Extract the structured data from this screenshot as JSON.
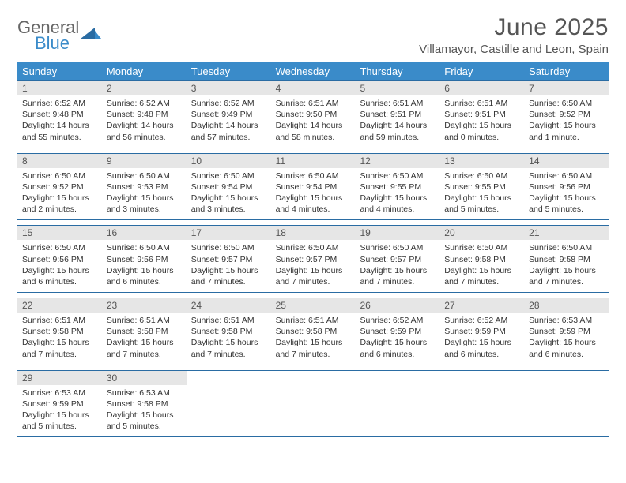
{
  "brand": {
    "word1": "General",
    "word2": "Blue"
  },
  "title": "June 2025",
  "location": "Villamayor, Castille and Leon, Spain",
  "colors": {
    "header_bg": "#3a8bc9",
    "header_text": "#ffffff",
    "daynum_bg": "#e6e6e6",
    "border": "#2a6ca3",
    "logo_gray": "#666666",
    "logo_blue": "#3a8bc9"
  },
  "weekdays": [
    "Sunday",
    "Monday",
    "Tuesday",
    "Wednesday",
    "Thursday",
    "Friday",
    "Saturday"
  ],
  "weeks": [
    [
      {
        "n": "1",
        "sr": "Sunrise: 6:52 AM",
        "ss": "Sunset: 9:48 PM",
        "dl": "Daylight: 14 hours and 55 minutes."
      },
      {
        "n": "2",
        "sr": "Sunrise: 6:52 AM",
        "ss": "Sunset: 9:48 PM",
        "dl": "Daylight: 14 hours and 56 minutes."
      },
      {
        "n": "3",
        "sr": "Sunrise: 6:52 AM",
        "ss": "Sunset: 9:49 PM",
        "dl": "Daylight: 14 hours and 57 minutes."
      },
      {
        "n": "4",
        "sr": "Sunrise: 6:51 AM",
        "ss": "Sunset: 9:50 PM",
        "dl": "Daylight: 14 hours and 58 minutes."
      },
      {
        "n": "5",
        "sr": "Sunrise: 6:51 AM",
        "ss": "Sunset: 9:51 PM",
        "dl": "Daylight: 14 hours and 59 minutes."
      },
      {
        "n": "6",
        "sr": "Sunrise: 6:51 AM",
        "ss": "Sunset: 9:51 PM",
        "dl": "Daylight: 15 hours and 0 minutes."
      },
      {
        "n": "7",
        "sr": "Sunrise: 6:50 AM",
        "ss": "Sunset: 9:52 PM",
        "dl": "Daylight: 15 hours and 1 minute."
      }
    ],
    [
      {
        "n": "8",
        "sr": "Sunrise: 6:50 AM",
        "ss": "Sunset: 9:52 PM",
        "dl": "Daylight: 15 hours and 2 minutes."
      },
      {
        "n": "9",
        "sr": "Sunrise: 6:50 AM",
        "ss": "Sunset: 9:53 PM",
        "dl": "Daylight: 15 hours and 3 minutes."
      },
      {
        "n": "10",
        "sr": "Sunrise: 6:50 AM",
        "ss": "Sunset: 9:54 PM",
        "dl": "Daylight: 15 hours and 3 minutes."
      },
      {
        "n": "11",
        "sr": "Sunrise: 6:50 AM",
        "ss": "Sunset: 9:54 PM",
        "dl": "Daylight: 15 hours and 4 minutes."
      },
      {
        "n": "12",
        "sr": "Sunrise: 6:50 AM",
        "ss": "Sunset: 9:55 PM",
        "dl": "Daylight: 15 hours and 4 minutes."
      },
      {
        "n": "13",
        "sr": "Sunrise: 6:50 AM",
        "ss": "Sunset: 9:55 PM",
        "dl": "Daylight: 15 hours and 5 minutes."
      },
      {
        "n": "14",
        "sr": "Sunrise: 6:50 AM",
        "ss": "Sunset: 9:56 PM",
        "dl": "Daylight: 15 hours and 5 minutes."
      }
    ],
    [
      {
        "n": "15",
        "sr": "Sunrise: 6:50 AM",
        "ss": "Sunset: 9:56 PM",
        "dl": "Daylight: 15 hours and 6 minutes."
      },
      {
        "n": "16",
        "sr": "Sunrise: 6:50 AM",
        "ss": "Sunset: 9:56 PM",
        "dl": "Daylight: 15 hours and 6 minutes."
      },
      {
        "n": "17",
        "sr": "Sunrise: 6:50 AM",
        "ss": "Sunset: 9:57 PM",
        "dl": "Daylight: 15 hours and 7 minutes."
      },
      {
        "n": "18",
        "sr": "Sunrise: 6:50 AM",
        "ss": "Sunset: 9:57 PM",
        "dl": "Daylight: 15 hours and 7 minutes."
      },
      {
        "n": "19",
        "sr": "Sunrise: 6:50 AM",
        "ss": "Sunset: 9:57 PM",
        "dl": "Daylight: 15 hours and 7 minutes."
      },
      {
        "n": "20",
        "sr": "Sunrise: 6:50 AM",
        "ss": "Sunset: 9:58 PM",
        "dl": "Daylight: 15 hours and 7 minutes."
      },
      {
        "n": "21",
        "sr": "Sunrise: 6:50 AM",
        "ss": "Sunset: 9:58 PM",
        "dl": "Daylight: 15 hours and 7 minutes."
      }
    ],
    [
      {
        "n": "22",
        "sr": "Sunrise: 6:51 AM",
        "ss": "Sunset: 9:58 PM",
        "dl": "Daylight: 15 hours and 7 minutes."
      },
      {
        "n": "23",
        "sr": "Sunrise: 6:51 AM",
        "ss": "Sunset: 9:58 PM",
        "dl": "Daylight: 15 hours and 7 minutes."
      },
      {
        "n": "24",
        "sr": "Sunrise: 6:51 AM",
        "ss": "Sunset: 9:58 PM",
        "dl": "Daylight: 15 hours and 7 minutes."
      },
      {
        "n": "25",
        "sr": "Sunrise: 6:51 AM",
        "ss": "Sunset: 9:58 PM",
        "dl": "Daylight: 15 hours and 7 minutes."
      },
      {
        "n": "26",
        "sr": "Sunrise: 6:52 AM",
        "ss": "Sunset: 9:59 PM",
        "dl": "Daylight: 15 hours and 6 minutes."
      },
      {
        "n": "27",
        "sr": "Sunrise: 6:52 AM",
        "ss": "Sunset: 9:59 PM",
        "dl": "Daylight: 15 hours and 6 minutes."
      },
      {
        "n": "28",
        "sr": "Sunrise: 6:53 AM",
        "ss": "Sunset: 9:59 PM",
        "dl": "Daylight: 15 hours and 6 minutes."
      }
    ],
    [
      {
        "n": "29",
        "sr": "Sunrise: 6:53 AM",
        "ss": "Sunset: 9:59 PM",
        "dl": "Daylight: 15 hours and 5 minutes."
      },
      {
        "n": "30",
        "sr": "Sunrise: 6:53 AM",
        "ss": "Sunset: 9:58 PM",
        "dl": "Daylight: 15 hours and 5 minutes."
      },
      null,
      null,
      null,
      null,
      null
    ]
  ]
}
